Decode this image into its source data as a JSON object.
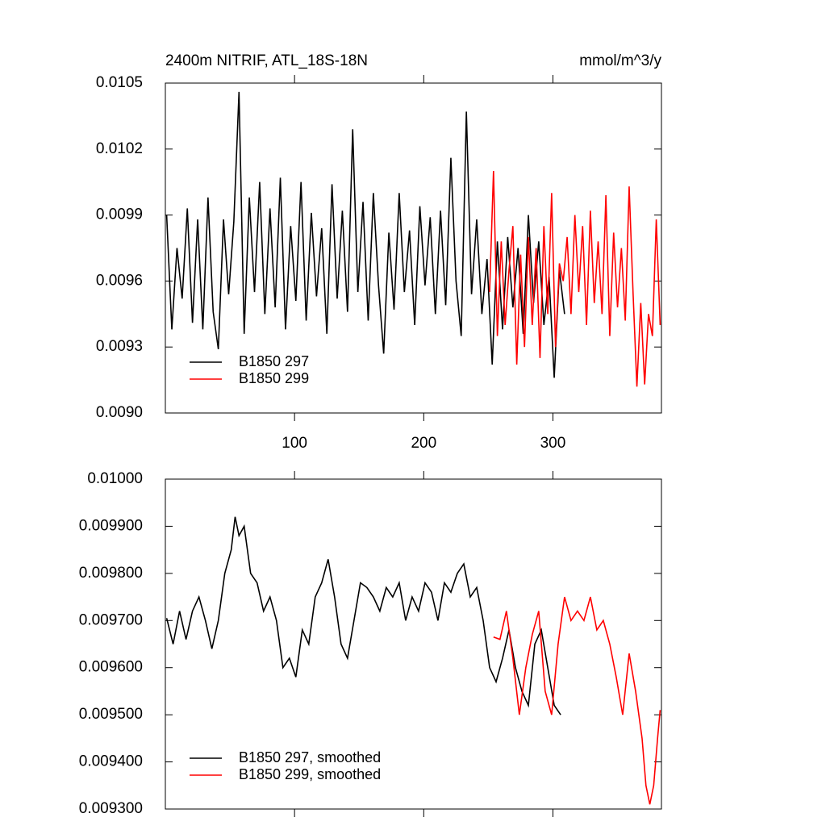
{
  "chart_data": [
    {
      "type": "line",
      "title": "2400m NITRIF, ATL_18S-18N",
      "units": "mmol/m^3/y",
      "xlim": [
        0,
        384
      ],
      "xticks": [
        100,
        200,
        300
      ],
      "xtick_labels": true,
      "ylim": [
        0.009,
        0.0105
      ],
      "yticks": [
        {
          "value": 0.009,
          "label": "0.0090"
        },
        0.0093,
        0.0096,
        0.0099,
        0.0102,
        0.0105
      ],
      "legend": "lower left",
      "series": [
        {
          "name": "B1850 297",
          "color": "#000000",
          "x": [
            1,
            5,
            9,
            13,
            17,
            21,
            25,
            29,
            33,
            37,
            41,
            45,
            49,
            53,
            57,
            61,
            65,
            69,
            73,
            77,
            81,
            85,
            89,
            93,
            97,
            101,
            105,
            109,
            113,
            117,
            121,
            125,
            129,
            133,
            137,
            141,
            145,
            149,
            153,
            157,
            161,
            165,
            169,
            173,
            177,
            181,
            185,
            189,
            193,
            197,
            201,
            205,
            209,
            213,
            217,
            221,
            225,
            229,
            233,
            237,
            241,
            245,
            249,
            253,
            257,
            261,
            265,
            269,
            273,
            277,
            281,
            285,
            289,
            293,
            297,
            301,
            305,
            309
          ],
          "values": [
            0.0099,
            0.00938,
            0.00975,
            0.00952,
            0.00993,
            0.00941,
            0.00988,
            0.00938,
            0.00998,
            0.00946,
            0.00929,
            0.00988,
            0.00954,
            0.00987,
            0.01046,
            0.00936,
            0.00998,
            0.00955,
            0.01005,
            0.00945,
            0.00993,
            0.00948,
            0.01007,
            0.00938,
            0.00985,
            0.00951,
            0.01005,
            0.00942,
            0.00991,
            0.00953,
            0.00984,
            0.00936,
            0.01004,
            0.00952,
            0.00992,
            0.00946,
            0.01029,
            0.00955,
            0.00996,
            0.00942,
            0.01,
            0.00958,
            0.00927,
            0.00982,
            0.00947,
            0.01,
            0.00955,
            0.00983,
            0.0094,
            0.00994,
            0.00958,
            0.00989,
            0.00945,
            0.00992,
            0.00949,
            0.01016,
            0.0096,
            0.00935,
            0.01037,
            0.00954,
            0.00988,
            0.00945,
            0.0097,
            0.00922,
            0.00978,
            0.00938,
            0.0098,
            0.00948,
            0.00975,
            0.00936,
            0.0099,
            0.0095,
            0.00978,
            0.0094,
            0.00962,
            0.00916,
            0.00965,
            0.00945
          ]
        },
        {
          "name": "B1850 299",
          "color": "#ff0000",
          "x": [
            251,
            254,
            257,
            260,
            263,
            266,
            269,
            272,
            275,
            278,
            281,
            284,
            287,
            290,
            293,
            296,
            299,
            302,
            305,
            308,
            311,
            314,
            317,
            320,
            323,
            326,
            329,
            332,
            335,
            338,
            341,
            344,
            347,
            350,
            353,
            356,
            359,
            362,
            365,
            368,
            371,
            374,
            377,
            380,
            383
          ],
          "values": [
            0.00955,
            0.0101,
            0.00935,
            0.00978,
            0.0094,
            0.00965,
            0.00985,
            0.00922,
            0.00972,
            0.0093,
            0.0098,
            0.0094,
            0.00975,
            0.00925,
            0.00985,
            0.00945,
            0.01,
            0.0093,
            0.00968,
            0.0096,
            0.0098,
            0.00945,
            0.0099,
            0.00955,
            0.00985,
            0.0094,
            0.00992,
            0.0095,
            0.00978,
            0.00945,
            0.00999,
            0.00935,
            0.00982,
            0.00948,
            0.00975,
            0.00942,
            0.01003,
            0.00955,
            0.00912,
            0.0095,
            0.00913,
            0.00945,
            0.00935,
            0.00988,
            0.0094
          ]
        }
      ]
    },
    {
      "type": "line",
      "xlim": [
        0,
        384
      ],
      "xticks": [
        100,
        200,
        300
      ],
      "xtick_labels": false,
      "ylim": [
        0.0093,
        0.01
      ],
      "yticks": [
        {
          "value": 0.0093,
          "label": "0.009300"
        },
        {
          "value": 0.0094,
          "label": "0.009400"
        },
        {
          "value": 0.0095,
          "label": "0.009500"
        },
        {
          "value": 0.0096,
          "label": "0.009600"
        },
        {
          "value": 0.0097,
          "label": "0.009700"
        },
        {
          "value": 0.0098,
          "label": "0.009800"
        },
        {
          "value": 0.0099,
          "label": "0.009900"
        },
        {
          "value": 0.01,
          "label": "0.01000"
        }
      ],
      "legend": "lower left",
      "series": [
        {
          "name": "B1850 297, smoothed",
          "color": "#000000",
          "x": [
            1,
            6,
            11,
            16,
            21,
            26,
            31,
            36,
            41,
            46,
            51,
            54,
            57,
            61,
            66,
            71,
            76,
            81,
            86,
            91,
            96,
            101,
            106,
            111,
            116,
            121,
            126,
            131,
            136,
            141,
            146,
            151,
            156,
            161,
            166,
            171,
            176,
            181,
            186,
            191,
            196,
            201,
            206,
            211,
            216,
            221,
            226,
            231,
            236,
            241,
            246,
            251,
            256,
            261,
            266,
            271,
            276,
            281,
            286,
            291,
            296,
            301,
            306
          ],
          "values": [
            0.009705,
            0.00965,
            0.00972,
            0.00966,
            0.00972,
            0.00975,
            0.0097,
            0.00964,
            0.0097,
            0.0098,
            0.00985,
            0.00992,
            0.00988,
            0.0099,
            0.0098,
            0.00978,
            0.00972,
            0.00975,
            0.0097,
            0.0096,
            0.00962,
            0.00958,
            0.00968,
            0.00965,
            0.00975,
            0.00978,
            0.00983,
            0.00975,
            0.00965,
            0.00962,
            0.0097,
            0.00978,
            0.00977,
            0.00975,
            0.00972,
            0.00977,
            0.00975,
            0.00978,
            0.0097,
            0.00975,
            0.00972,
            0.00978,
            0.00976,
            0.0097,
            0.00978,
            0.00976,
            0.0098,
            0.00982,
            0.00975,
            0.00977,
            0.0097,
            0.0096,
            0.00957,
            0.00962,
            0.00968,
            0.0096,
            0.00955,
            0.00952,
            0.00965,
            0.00968,
            0.0096,
            0.00952,
            0.0095
          ]
        },
        {
          "name": "B1850 299, smoothed",
          "color": "#ff0000",
          "x": [
            254,
            259,
            264,
            269,
            274,
            279,
            284,
            289,
            294,
            299,
            304,
            309,
            314,
            319,
            324,
            329,
            334,
            339,
            344,
            349,
            354,
            359,
            364,
            369,
            372,
            375,
            378,
            381,
            383
          ],
          "values": [
            0.009665,
            0.00966,
            0.00972,
            0.00962,
            0.0095,
            0.0096,
            0.00967,
            0.00972,
            0.00955,
            0.0095,
            0.00965,
            0.00975,
            0.0097,
            0.00972,
            0.0097,
            0.00975,
            0.00968,
            0.0097,
            0.00965,
            0.00958,
            0.0095,
            0.00963,
            0.00955,
            0.00945,
            0.00935,
            0.00931,
            0.00935,
            0.00945,
            0.00951
          ]
        }
      ]
    }
  ]
}
